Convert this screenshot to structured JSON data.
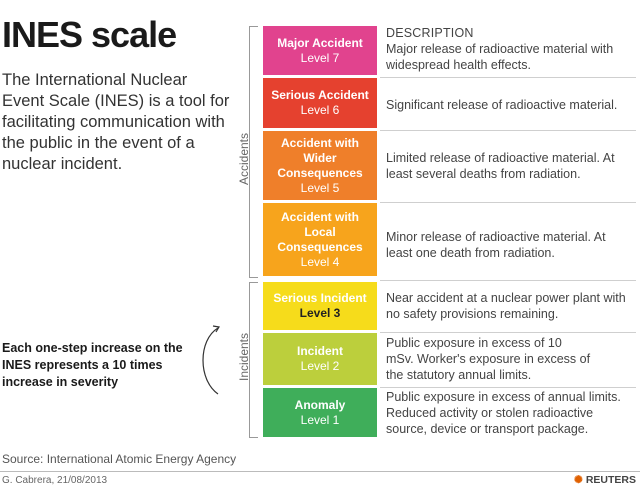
{
  "title": "INES scale",
  "intro": "The International Nuclear Event Scale (INES) is a tool for facilitating communication with the public in the event of a nuclear incident.",
  "note": "Each one-step increase on the INES represents a 10 times increase in severity",
  "groups": {
    "accidents": "Accidents",
    "incidents": "Incidents"
  },
  "description_header": "DESCRIPTION",
  "levels": [
    {
      "name": "Major Accident",
      "level": "Level 7",
      "color": "#e1438e",
      "description": "Major release of radioactive material with widespread health effects."
    },
    {
      "name": "Serious Accident",
      "level": "Level 6",
      "color": "#e5412f",
      "description": "Significant release of radioactive material."
    },
    {
      "name": "Accident with Wider Consequences",
      "level": "Level 5",
      "color": "#ef7f2a",
      "description": "Limited release of radioactive material. At least several deaths from radiation."
    },
    {
      "name": "Accident with Local Consequences",
      "level": "Level 4",
      "color": "#f7a41c",
      "description": "Minor release of radioactive material. At least one death from radiation."
    },
    {
      "name": "Serious Incident",
      "level": "Level 3",
      "color": "#f6dc1b",
      "description": "Near accident at a nuclear power plant with no safety provisions remaining."
    },
    {
      "name": "Incident",
      "level": "Level 2",
      "color": "#bccf3c",
      "description": "Public exposure in excess of 10 mSv. Worker's exposure in excess of the statutory annual limits."
    },
    {
      "name": "Anomaly",
      "level": "Level 1",
      "color": "#3fae5a",
      "description": "Public exposure in excess of annual limits. Reduced activity or stolen radioactive source, device or transport package."
    }
  ],
  "source": "Source: International Atomic Energy Agency",
  "credit": "G. Cabrera, 21/08/2013",
  "brand": "REUTERS"
}
